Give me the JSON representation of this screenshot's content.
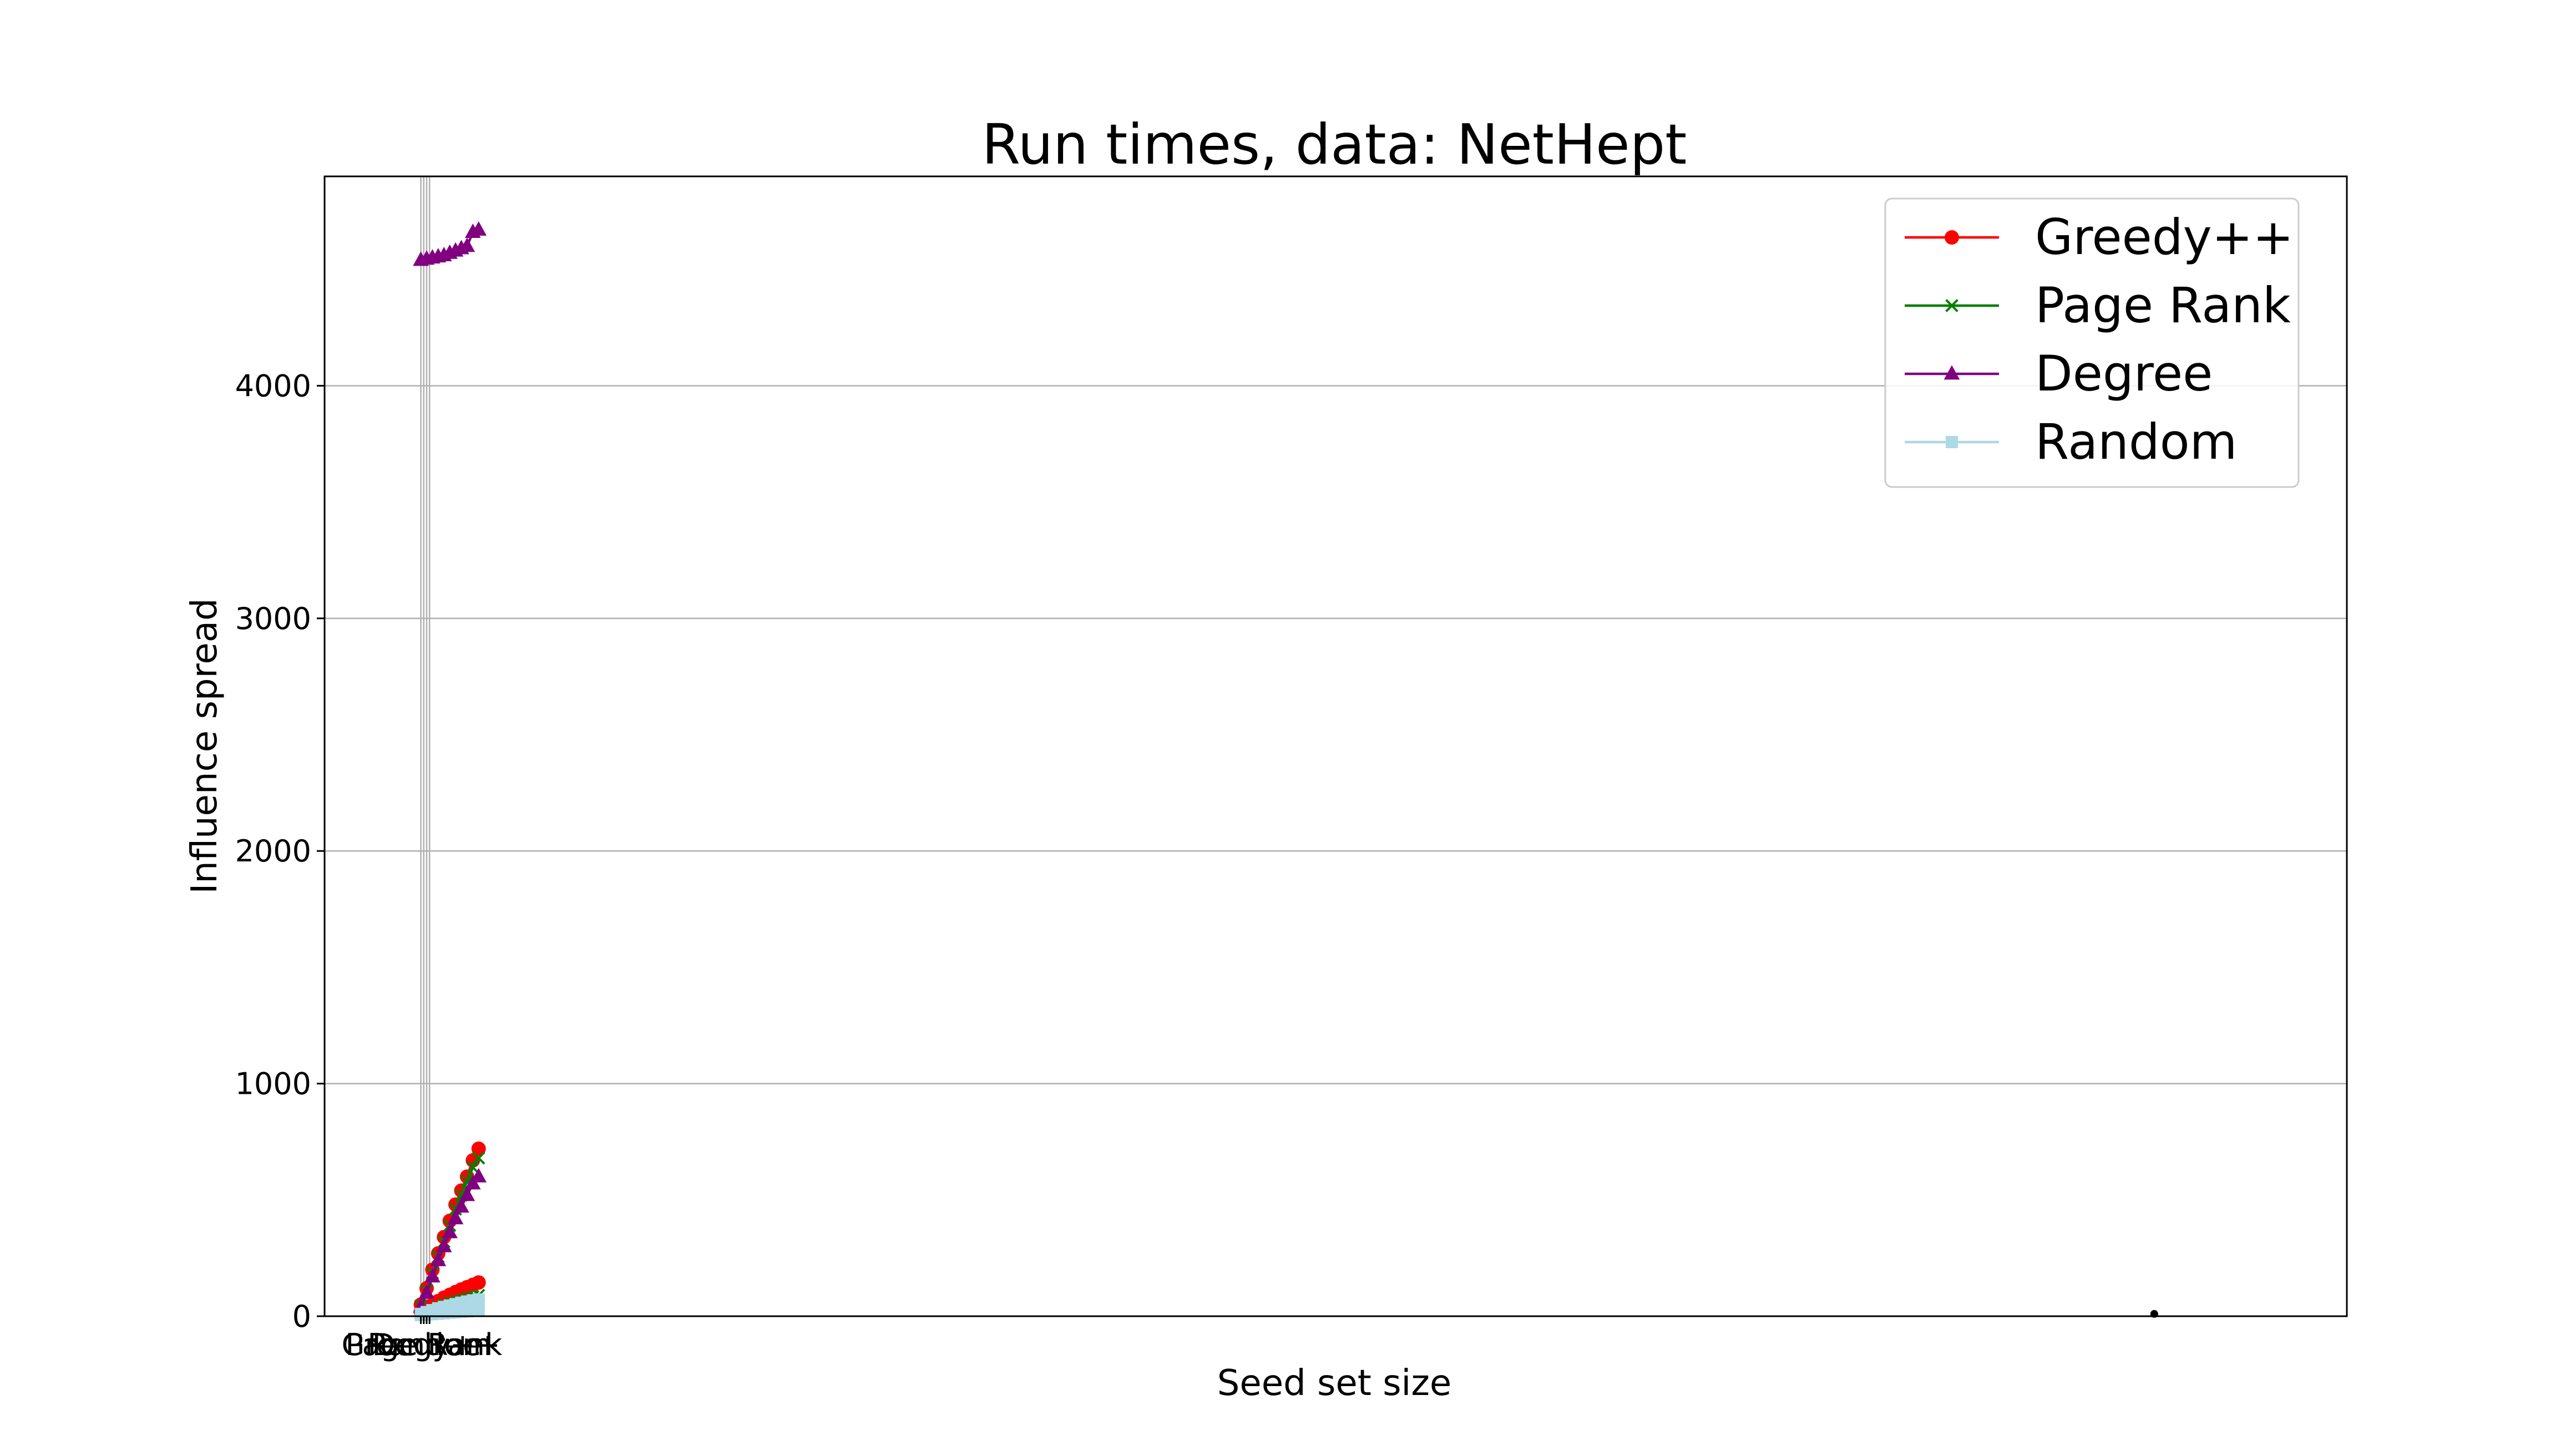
{
  "chart_data": {
    "type": "line",
    "title": "Run times, data: NetHept",
    "xlabel": "Seed set size",
    "ylabel": "Influence spread",
    "xlim": [
      -5,
      100
    ],
    "ylim": [
      0,
      4900
    ],
    "yticks": [
      0,
      1000,
      2000,
      3000,
      4000
    ],
    "xticks": [
      {
        "x": 0.0,
        "label": "Greedy++"
      },
      {
        "x": 0.15,
        "label": "Page Rank"
      },
      {
        "x": 0.3,
        "label": "Degree"
      },
      {
        "x": 0.45,
        "label": "Random"
      }
    ],
    "grid": "horizontal",
    "legend_position": "top-right",
    "series": [
      {
        "name": "Greedy++",
        "color": "#ff0000",
        "marker": "circle",
        "x": [
          0,
          0.3,
          0.6,
          0.9,
          1.2,
          1.5,
          1.8,
          2.1,
          2.4,
          2.7,
          3.0
        ],
        "y": [
          50,
          120,
          200,
          270,
          340,
          410,
          480,
          540,
          600,
          670,
          720
        ]
      },
      {
        "name": "Greedy++",
        "color": "#ff0000",
        "marker": "circle",
        "x": [
          0,
          0.3,
          0.6,
          0.9,
          1.2,
          1.5,
          1.8,
          2.1,
          2.4,
          2.7,
          3.0
        ],
        "y": [
          20,
          35,
          50,
          65,
          80,
          92,
          104,
          115,
          125,
          135,
          145
        ]
      },
      {
        "name": "Page Rank",
        "color": "#008000",
        "marker": "x",
        "x": [
          0,
          0.3,
          0.6,
          0.9,
          1.2,
          1.5,
          1.8,
          2.1,
          2.4,
          2.7,
          3.0
        ],
        "y": [
          45,
          110,
          185,
          255,
          320,
          390,
          460,
          520,
          580,
          640,
          680
        ]
      },
      {
        "name": "Page Rank",
        "color": "#008000",
        "marker": "x",
        "x": [
          0,
          0.3,
          0.6,
          0.9,
          1.2,
          1.5,
          1.8,
          2.1,
          2.4,
          2.7,
          3.0
        ],
        "y": [
          12,
          20,
          30,
          40,
          50,
          58,
          65,
          72,
          78,
          85,
          90
        ]
      },
      {
        "name": "Degree",
        "color": "#800080",
        "marker": "triangle",
        "x": [
          0,
          0.3,
          0.6,
          0.9,
          1.2,
          1.5,
          1.8,
          2.1,
          2.4,
          2.7,
          3.0
        ],
        "y": [
          40,
          100,
          170,
          240,
          300,
          360,
          420,
          470,
          520,
          570,
          600
        ]
      },
      {
        "name": "Degree",
        "color": "#800080",
        "marker": "triangle",
        "x": [
          0,
          0.3,
          0.6,
          0.9,
          1.2,
          1.5,
          1.8,
          2.1,
          2.4,
          2.7,
          3.0
        ],
        "y": [
          4540,
          4545,
          4550,
          4555,
          4560,
          4570,
          4580,
          4590,
          4600,
          4660,
          4670
        ]
      },
      {
        "name": "Random",
        "color": "#add8e6",
        "marker": "square",
        "x": [
          0,
          0.3,
          0.6,
          0.9,
          1.2,
          1.5,
          1.8,
          2.1,
          2.4,
          2.7,
          3.0
        ],
        "y": [
          5,
          7,
          9,
          11,
          13,
          15,
          17,
          19,
          21,
          23,
          25
        ]
      },
      {
        "name": "Random",
        "color": "#add8e6",
        "marker": "square",
        "x": [
          0,
          0.3,
          0.6,
          0.9,
          1.2,
          1.5,
          1.8,
          2.1,
          2.4,
          2.7,
          3.0
        ],
        "y": [
          10,
          18,
          26,
          34,
          40,
          46,
          52,
          58,
          63,
          68,
          72
        ]
      }
    ],
    "extra_points": [
      {
        "x": 90,
        "y": 10,
        "color": "#000000"
      }
    ],
    "legend": [
      {
        "label": "Greedy++",
        "color": "#ff0000",
        "marker": "circle"
      },
      {
        "label": "Page Rank",
        "color": "#008000",
        "marker": "x"
      },
      {
        "label": "Degree",
        "color": "#800080",
        "marker": "triangle"
      },
      {
        "label": "Random",
        "color": "#add8e6",
        "marker": "square"
      }
    ]
  }
}
